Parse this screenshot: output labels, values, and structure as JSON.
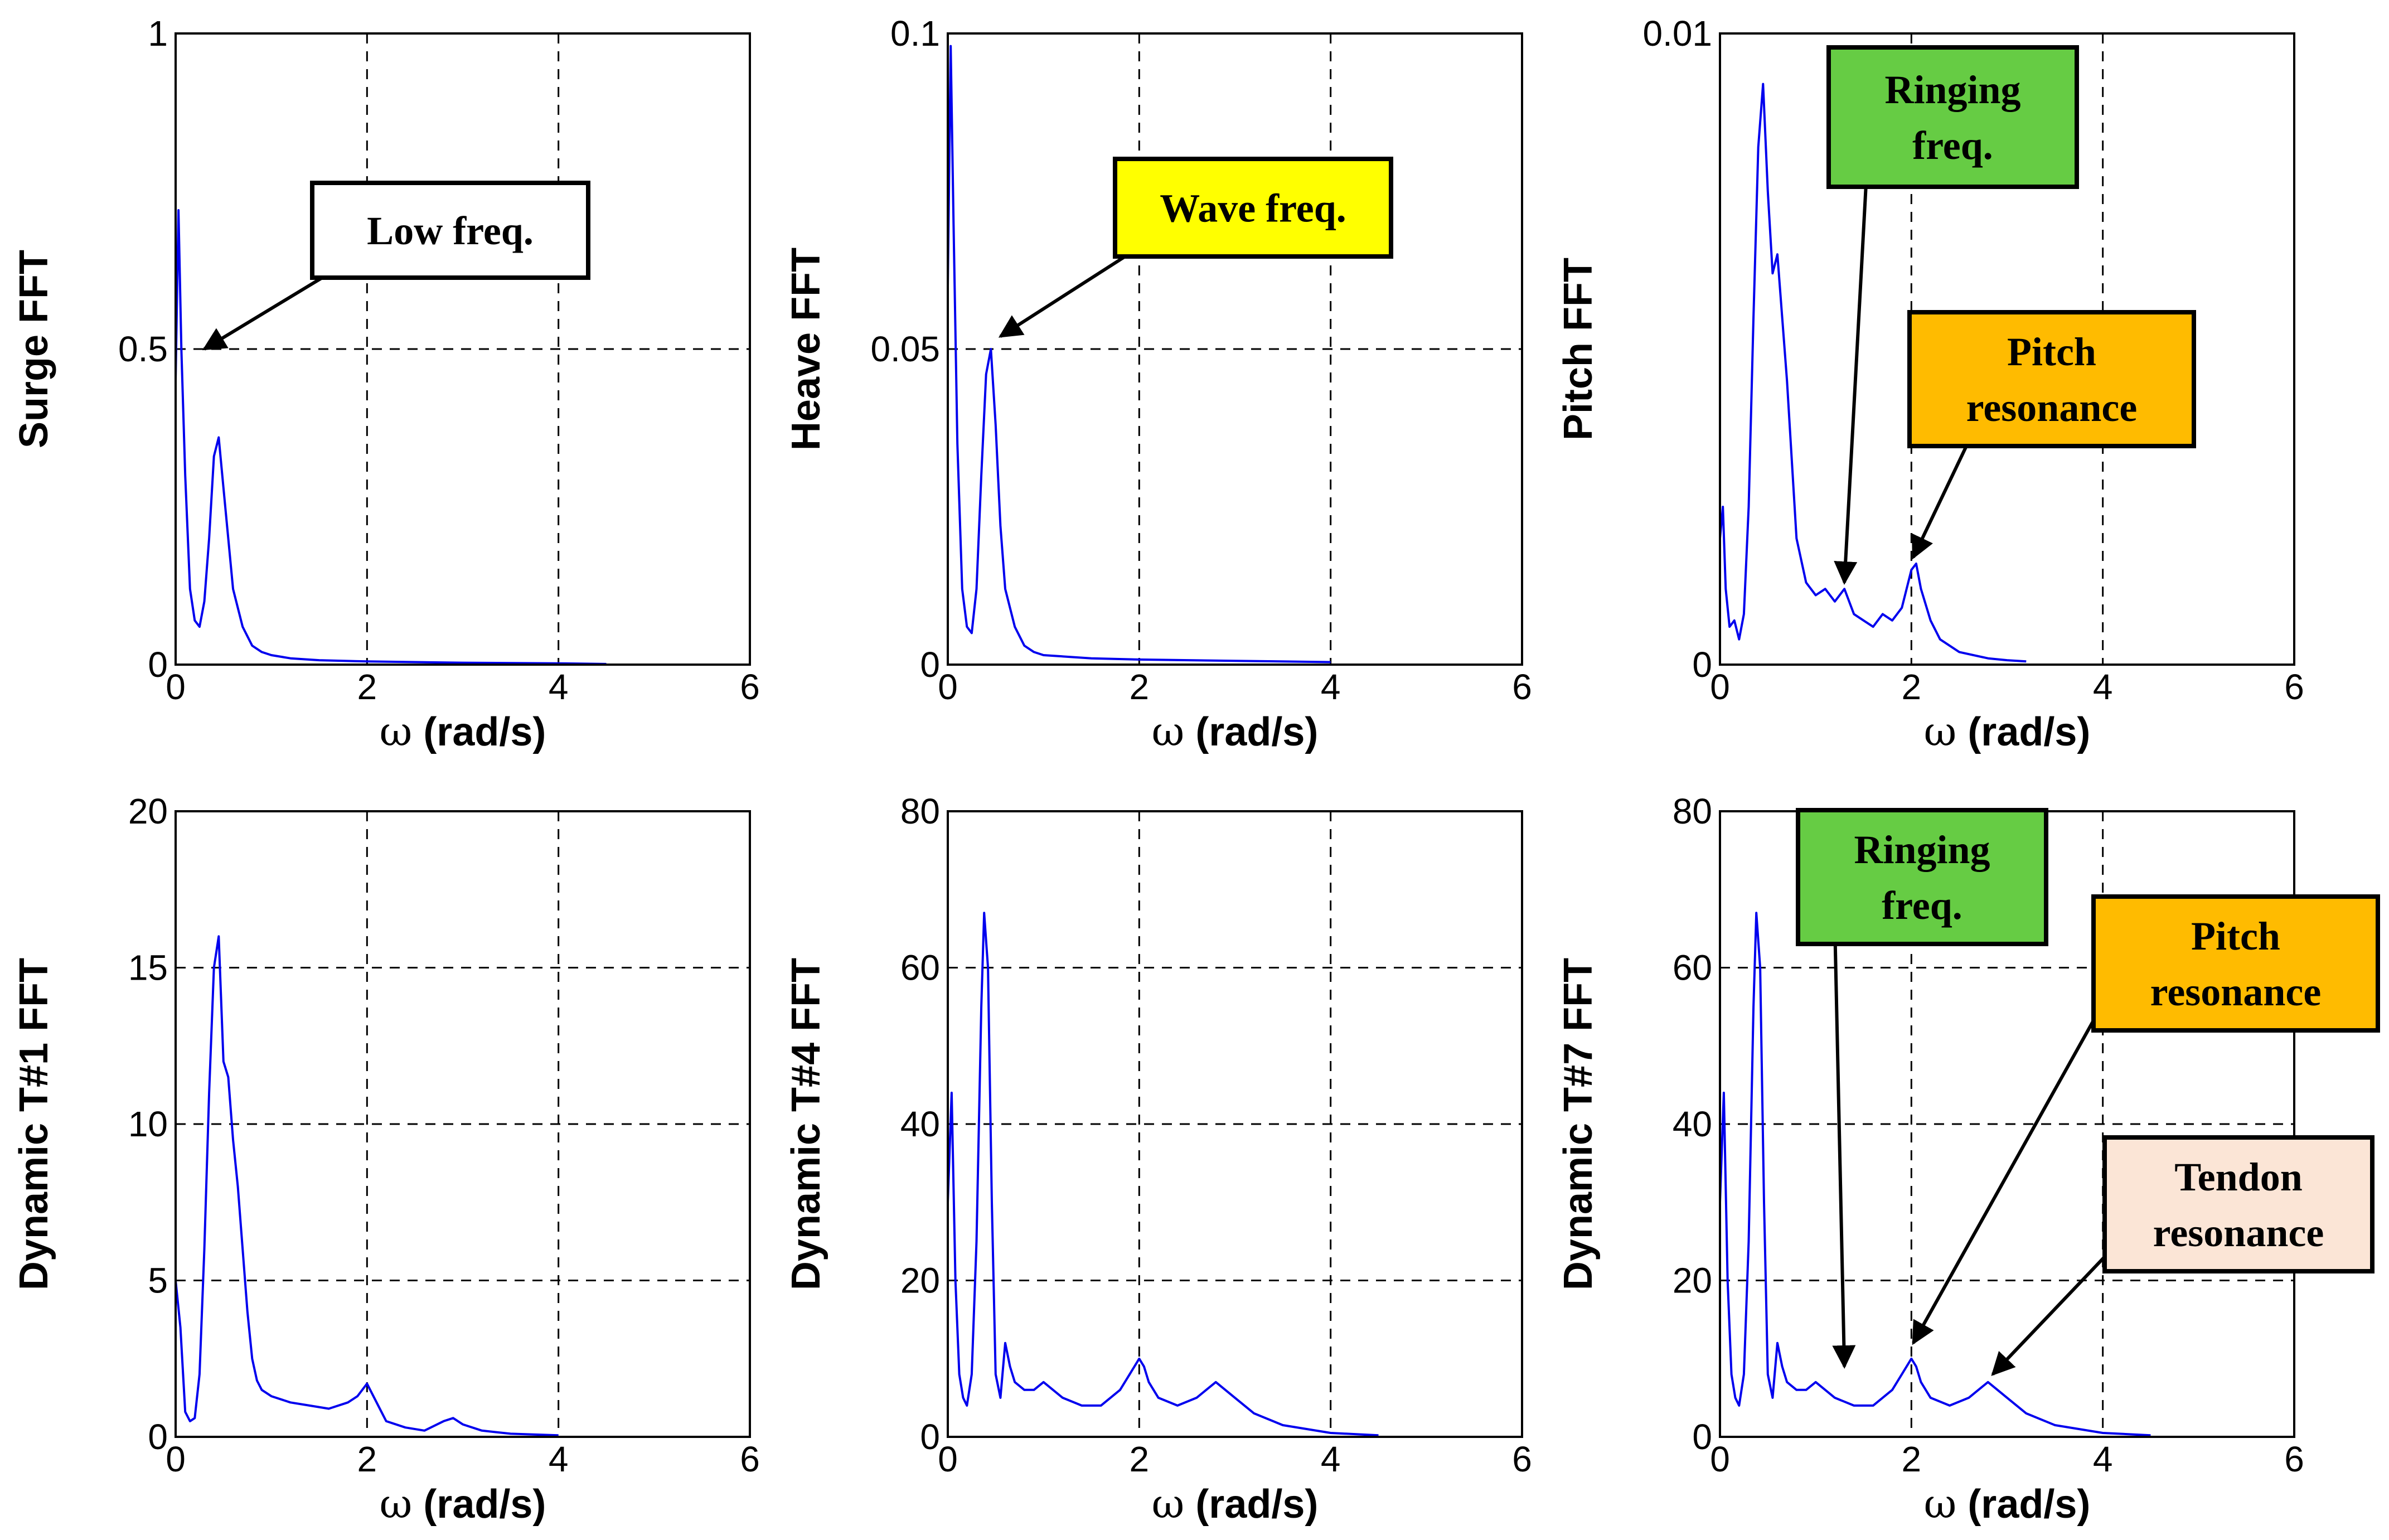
{
  "chart_data": [
    {
      "type": "line",
      "id": "surge",
      "ylabel": "Surge FFT",
      "xlabel": "ω (rad/s)",
      "xlim": [
        0,
        6
      ],
      "ylim": [
        0,
        1
      ],
      "xticks": [
        "0",
        "2",
        "4",
        "6"
      ],
      "yticks": [
        "0",
        "0.5",
        "1"
      ],
      "grid": true,
      "series": [
        {
          "name": "Surge FFT",
          "x": [
            0,
            0.03,
            0.06,
            0.1,
            0.15,
            0.2,
            0.25,
            0.3,
            0.35,
            0.4,
            0.45,
            0.5,
            0.55,
            0.6,
            0.7,
            0.8,
            0.9,
            1.0,
            1.2,
            1.5,
            2.0,
            3.0,
            4.0,
            4.5
          ],
          "y": [
            0.45,
            0.72,
            0.5,
            0.3,
            0.12,
            0.07,
            0.06,
            0.1,
            0.2,
            0.33,
            0.36,
            0.28,
            0.2,
            0.12,
            0.06,
            0.03,
            0.02,
            0.015,
            0.01,
            0.007,
            0.005,
            0.003,
            0.002,
            0.001
          ]
        }
      ],
      "annotations": [
        {
          "label_lines": [
            "Low freq."
          ],
          "box_color": "#ffffff",
          "target": [
            0.3,
            0.5
          ]
        }
      ]
    },
    {
      "type": "line",
      "id": "heave",
      "ylabel": "Heave FFT",
      "xlabel": "ω (rad/s)",
      "xlim": [
        0,
        6
      ],
      "ylim": [
        0,
        0.1
      ],
      "xticks": [
        "0",
        "2",
        "4",
        "6"
      ],
      "yticks": [
        "0",
        "0.05",
        "0.1"
      ],
      "grid": true,
      "series": [
        {
          "name": "Heave FFT",
          "x": [
            0,
            0.03,
            0.06,
            0.1,
            0.15,
            0.2,
            0.25,
            0.3,
            0.35,
            0.4,
            0.45,
            0.5,
            0.55,
            0.6,
            0.7,
            0.8,
            0.9,
            1.0,
            1.5,
            2.0,
            3.0,
            4.0
          ],
          "y": [
            0.06,
            0.098,
            0.07,
            0.035,
            0.012,
            0.006,
            0.005,
            0.012,
            0.03,
            0.046,
            0.05,
            0.038,
            0.022,
            0.012,
            0.006,
            0.003,
            0.002,
            0.0015,
            0.001,
            0.0008,
            0.0006,
            0.0004
          ]
        }
      ],
      "annotations": [
        {
          "label_lines": [
            "Wave freq."
          ],
          "box_color": "#ffff00",
          "target": [
            0.55,
            0.052
          ]
        }
      ]
    },
    {
      "type": "line",
      "id": "pitch",
      "ylabel": "Pitch FFT",
      "xlabel": "ω (rad/s)",
      "xlim": [
        0,
        6
      ],
      "ylim": [
        0,
        0.01
      ],
      "xticks": [
        "0",
        "2",
        "4",
        "6"
      ],
      "yticks": [
        "0",
        "0.01"
      ],
      "grid": true,
      "series": [
        {
          "name": "Pitch FFT",
          "x": [
            0,
            0.03,
            0.06,
            0.1,
            0.15,
            0.2,
            0.25,
            0.3,
            0.35,
            0.4,
            0.45,
            0.5,
            0.55,
            0.6,
            0.65,
            0.7,
            0.8,
            0.9,
            1.0,
            1.1,
            1.2,
            1.3,
            1.4,
            1.5,
            1.6,
            1.7,
            1.8,
            1.9,
            2.0,
            2.05,
            2.1,
            2.2,
            2.3,
            2.5,
            2.8,
            3.0,
            3.2
          ],
          "y": [
            0.002,
            0.0025,
            0.0012,
            0.0006,
            0.0007,
            0.0004,
            0.0008,
            0.0025,
            0.0055,
            0.0082,
            0.0092,
            0.0075,
            0.0062,
            0.0065,
            0.0055,
            0.0045,
            0.002,
            0.0013,
            0.0011,
            0.0012,
            0.001,
            0.0012,
            0.0008,
            0.0007,
            0.0006,
            0.0008,
            0.0007,
            0.0009,
            0.0015,
            0.0016,
            0.0012,
            0.0007,
            0.0004,
            0.0002,
            0.0001,
            7e-05,
            5e-05
          ]
        }
      ],
      "annotations": [
        {
          "label_lines": [
            "Ringing",
            "freq."
          ],
          "box_color": "#66cc44",
          "target": [
            1.3,
            0.0013
          ]
        },
        {
          "label_lines": [
            "Pitch",
            "resonance"
          ],
          "box_color": "#ffbb00",
          "target": [
            2.02,
            0.0017
          ]
        }
      ]
    },
    {
      "type": "line",
      "id": "t1",
      "ylabel": "Dynamic T#1 FFT",
      "xlabel": "ω (rad/s)",
      "xlim": [
        0,
        6
      ],
      "ylim": [
        0,
        20
      ],
      "xticks": [
        "0",
        "2",
        "4",
        "6"
      ],
      "yticks": [
        "0",
        "5",
        "10",
        "15",
        "20"
      ],
      "grid": true,
      "series": [
        {
          "name": "Dynamic T#1 FFT",
          "x": [
            0,
            0.05,
            0.1,
            0.15,
            0.2,
            0.25,
            0.3,
            0.35,
            0.4,
            0.45,
            0.5,
            0.55,
            0.6,
            0.65,
            0.7,
            0.75,
            0.8,
            0.85,
            0.9,
            1.0,
            1.2,
            1.4,
            1.6,
            1.8,
            1.9,
            2.0,
            2.1,
            2.2,
            2.4,
            2.6,
            2.8,
            2.9,
            3.0,
            3.2,
            3.5,
            4.0
          ],
          "y": [
            5,
            3.5,
            0.8,
            0.5,
            0.6,
            2,
            6,
            11,
            15,
            16,
            12,
            11.5,
            9.5,
            8,
            6,
            4,
            2.5,
            1.8,
            1.5,
            1.3,
            1.1,
            1.0,
            0.9,
            1.1,
            1.3,
            1.7,
            1.1,
            0.5,
            0.3,
            0.2,
            0.5,
            0.6,
            0.4,
            0.2,
            0.1,
            0.05
          ]
        }
      ],
      "annotations": []
    },
    {
      "type": "line",
      "id": "t4",
      "ylabel": "Dynamic T#4 FFT",
      "xlabel": "ω (rad/s)",
      "xlim": [
        0,
        6
      ],
      "ylim": [
        0,
        80
      ],
      "xticks": [
        "0",
        "2",
        "4",
        "6"
      ],
      "yticks": [
        "0",
        "20",
        "40",
        "60",
        "80"
      ],
      "grid": true,
      "series": [
        {
          "name": "Dynamic T#4 FFT",
          "x": [
            0,
            0.04,
            0.08,
            0.12,
            0.16,
            0.2,
            0.25,
            0.3,
            0.35,
            0.38,
            0.42,
            0.46,
            0.5,
            0.55,
            0.6,
            0.65,
            0.7,
            0.8,
            0.9,
            1.0,
            1.2,
            1.4,
            1.6,
            1.8,
            1.9,
            2.0,
            2.05,
            2.1,
            2.2,
            2.4,
            2.6,
            2.7,
            2.8,
            2.9,
            3.0,
            3.2,
            3.5,
            4.0,
            4.5
          ],
          "y": [
            30,
            44,
            20,
            8,
            5,
            4,
            8,
            25,
            55,
            67,
            60,
            30,
            8,
            5,
            12,
            9,
            7,
            6,
            6,
            7,
            5,
            4,
            4,
            6,
            8,
            10,
            9,
            7,
            5,
            4,
            5,
            6,
            7,
            6,
            5,
            3,
            1.5,
            0.5,
            0.2
          ]
        }
      ],
      "annotations": []
    },
    {
      "type": "line",
      "id": "t7",
      "ylabel": "Dynamic T#7 FFT",
      "xlabel": "ω (rad/s)",
      "xlim": [
        0,
        6
      ],
      "ylim": [
        0,
        80
      ],
      "xticks": [
        "0",
        "2",
        "4",
        "6"
      ],
      "yticks": [
        "0",
        "20",
        "40",
        "60",
        "80"
      ],
      "grid": true,
      "series": [
        {
          "name": "Dynamic T#7 FFT",
          "x": [
            0,
            0.04,
            0.08,
            0.12,
            0.16,
            0.2,
            0.25,
            0.3,
            0.35,
            0.38,
            0.42,
            0.46,
            0.5,
            0.55,
            0.6,
            0.65,
            0.7,
            0.8,
            0.9,
            1.0,
            1.2,
            1.4,
            1.6,
            1.8,
            1.9,
            2.0,
            2.05,
            2.1,
            2.2,
            2.4,
            2.6,
            2.7,
            2.8,
            2.9,
            3.0,
            3.2,
            3.5,
            4.0,
            4.5
          ],
          "y": [
            30,
            44,
            20,
            8,
            5,
            4,
            8,
            25,
            55,
            67,
            60,
            30,
            8,
            5,
            12,
            9,
            7,
            6,
            6,
            7,
            5,
            4,
            4,
            6,
            8,
            10,
            9,
            7,
            5,
            4,
            5,
            6,
            7,
            6,
            5,
            3,
            1.5,
            0.5,
            0.2
          ]
        }
      ],
      "annotations": [
        {
          "label_lines": [
            "Ringing",
            "freq."
          ],
          "box_color": "#66cc44",
          "target": [
            1.3,
            9
          ]
        },
        {
          "label_lines": [
            "Pitch",
            "resonance"
          ],
          "box_color": "#ffbb00",
          "target": [
            2.02,
            12
          ]
        },
        {
          "label_lines": [
            "Tendon",
            "resonance"
          ],
          "box_color": "#fbe5d6",
          "target": [
            2.85,
            8
          ]
        }
      ]
    }
  ]
}
